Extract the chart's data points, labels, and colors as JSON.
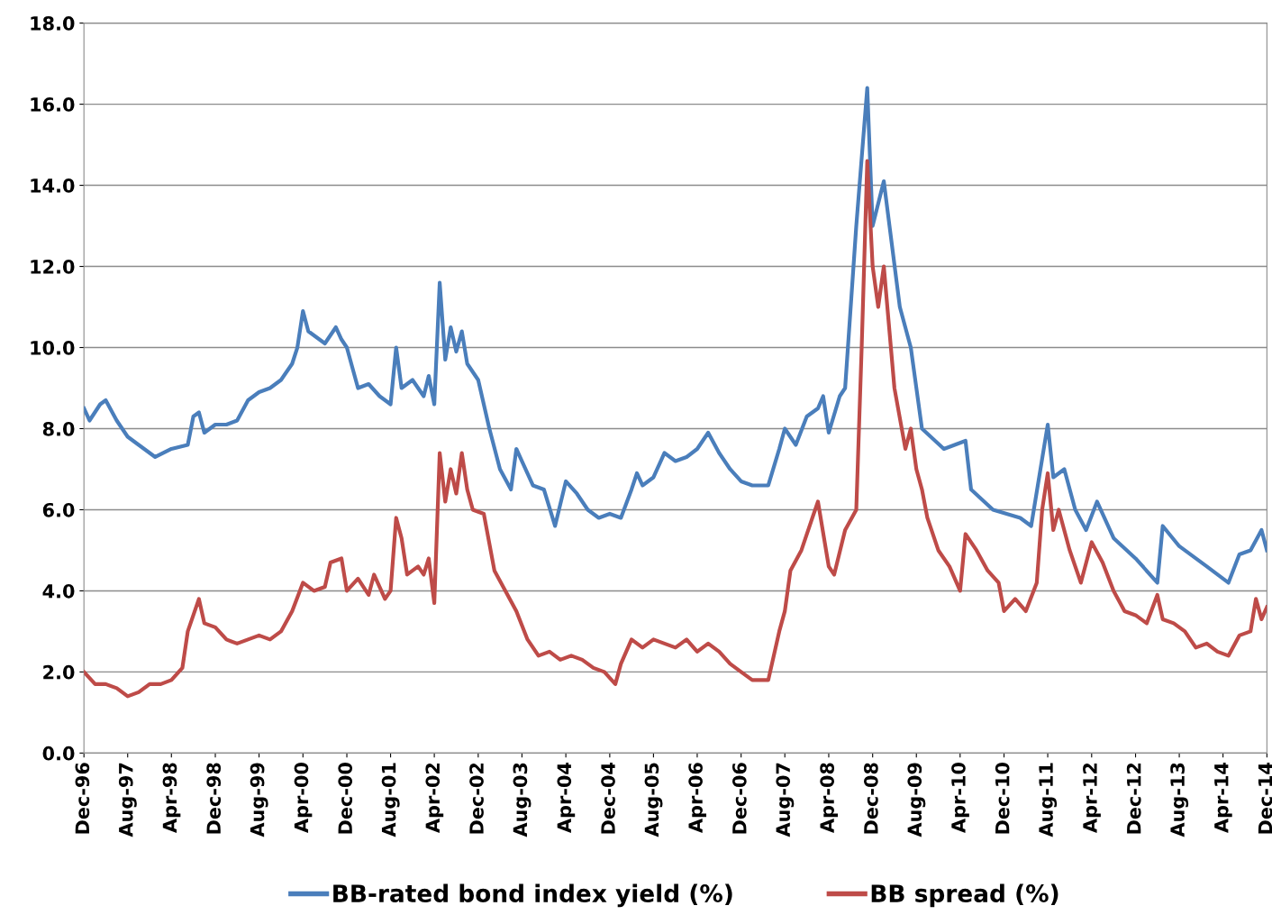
{
  "chart_data": {
    "type": "line",
    "xlim": [
      "1996-12",
      "2014-12"
    ],
    "ylim": [
      0,
      18
    ],
    "xticks": [
      {
        "value": "1996-12",
        "label": "Dec-96"
      },
      {
        "value": "1997-08",
        "label": "Aug-97"
      },
      {
        "value": "1998-04",
        "label": "Apr-98"
      },
      {
        "value": "1998-12",
        "label": "Dec-98"
      },
      {
        "value": "1999-08",
        "label": "Aug-99"
      },
      {
        "value": "2000-04",
        "label": "Apr-00"
      },
      {
        "value": "2000-12",
        "label": "Dec-00"
      },
      {
        "value": "2001-08",
        "label": "Aug-01"
      },
      {
        "value": "2002-04",
        "label": "Apr-02"
      },
      {
        "value": "2002-12",
        "label": "Dec-02"
      },
      {
        "value": "2003-08",
        "label": "Aug-03"
      },
      {
        "value": "2004-04",
        "label": "Apr-04"
      },
      {
        "value": "2004-12",
        "label": "Dec-04"
      },
      {
        "value": "2005-08",
        "label": "Aug-05"
      },
      {
        "value": "2006-04",
        "label": "Apr-06"
      },
      {
        "value": "2006-12",
        "label": "Dec-06"
      },
      {
        "value": "2007-08",
        "label": "Aug-07"
      },
      {
        "value": "2008-04",
        "label": "Apr-08"
      },
      {
        "value": "2008-12",
        "label": "Dec-08"
      },
      {
        "value": "2009-08",
        "label": "Aug-09"
      },
      {
        "value": "2010-04",
        "label": "Apr-10"
      },
      {
        "value": "2010-12",
        "label": "Dec-10"
      },
      {
        "value": "2011-08",
        "label": "Aug-11"
      },
      {
        "value": "2012-04",
        "label": "Apr-12"
      },
      {
        "value": "2012-12",
        "label": "Dec-12"
      },
      {
        "value": "2013-08",
        "label": "Aug-13"
      },
      {
        "value": "2014-04",
        "label": "Apr-14"
      },
      {
        "value": "2014-12",
        "label": "Dec-14"
      }
    ],
    "yticks": [
      {
        "value": 0,
        "label": "0.0"
      },
      {
        "value": 2,
        "label": "2.0"
      },
      {
        "value": 4,
        "label": "4.0"
      },
      {
        "value": 6,
        "label": "6.0"
      },
      {
        "value": 8,
        "label": "8.0"
      },
      {
        "value": 10,
        "label": "10.0"
      },
      {
        "value": 12,
        "label": "12.0"
      },
      {
        "value": 14,
        "label": "14.0"
      },
      {
        "value": 16,
        "label": "16.0"
      },
      {
        "value": 18,
        "label": "18.0"
      }
    ],
    "grid": "y",
    "legend": "bottom",
    "marker": "none",
    "line_style": "solid",
    "series": [
      {
        "name": "BB-rated bond index yield (%)",
        "color": "#4a7ebb",
        "x": [
          "1996-12",
          "1997-01",
          "1997-03",
          "1997-04",
          "1997-06",
          "1997-08",
          "1997-10",
          "1998-01",
          "1998-04",
          "1998-07",
          "1998-08",
          "1998-09",
          "1998-10",
          "1998-12",
          "1999-02",
          "1999-04",
          "1999-06",
          "1999-08",
          "1999-10",
          "1999-12",
          "2000-02",
          "2000-03",
          "2000-04",
          "2000-05",
          "2000-08",
          "2000-10",
          "2000-11",
          "2000-12",
          "2001-02",
          "2001-04",
          "2001-06",
          "2001-08",
          "2001-09",
          "2001-10",
          "2001-12",
          "2002-02",
          "2002-03",
          "2002-04",
          "2002-05",
          "2002-06",
          "2002-07",
          "2002-08",
          "2002-09",
          "2002-10",
          "2002-12",
          "2003-02",
          "2003-04",
          "2003-06",
          "2003-07",
          "2003-10",
          "2003-12",
          "2004-02",
          "2004-04",
          "2004-06",
          "2004-08",
          "2004-10",
          "2004-12",
          "2005-02",
          "2005-04",
          "2005-05",
          "2005-06",
          "2005-08",
          "2005-10",
          "2005-12",
          "2006-02",
          "2006-04",
          "2006-06",
          "2006-08",
          "2006-10",
          "2006-12",
          "2007-02",
          "2007-05",
          "2007-07",
          "2007-08",
          "2007-10",
          "2007-12",
          "2008-02",
          "2008-03",
          "2008-04",
          "2008-06",
          "2008-07",
          "2008-09",
          "2008-11",
          "2008-12",
          "2009-02",
          "2009-05",
          "2009-07",
          "2009-08",
          "2009-09",
          "2010-01",
          "2010-05",
          "2010-06",
          "2010-10",
          "2011-03",
          "2011-05",
          "2011-08",
          "2011-09",
          "2011-11",
          "2012-01",
          "2012-03",
          "2012-05",
          "2012-08",
          "2012-12",
          "2013-04",
          "2013-05",
          "2013-08",
          "2014-01",
          "2014-05",
          "2014-07",
          "2014-09",
          "2014-11",
          "2014-12"
        ],
        "values": [
          8.5,
          8.2,
          8.6,
          8.7,
          8.2,
          7.8,
          7.6,
          7.3,
          7.5,
          7.6,
          8.3,
          8.4,
          7.9,
          8.1,
          8.1,
          8.2,
          8.7,
          8.9,
          9.0,
          9.2,
          9.6,
          10.0,
          10.9,
          10.4,
          10.1,
          10.5,
          10.2,
          10.0,
          9.0,
          9.1,
          8.8,
          8.6,
          10.0,
          9.0,
          9.2,
          8.8,
          9.3,
          8.6,
          11.6,
          9.7,
          10.5,
          9.9,
          10.4,
          9.6,
          9.2,
          8.0,
          7.0,
          6.5,
          7.5,
          6.6,
          6.5,
          5.6,
          6.7,
          6.4,
          6.0,
          5.8,
          5.9,
          5.8,
          6.5,
          6.9,
          6.6,
          6.8,
          7.4,
          7.2,
          7.3,
          7.5,
          7.9,
          7.4,
          7.0,
          6.7,
          6.6,
          6.6,
          7.5,
          8.0,
          7.6,
          8.3,
          8.5,
          8.8,
          7.9,
          8.8,
          9.0,
          13.0,
          16.4,
          13.0,
          14.1,
          11.0,
          10.0,
          9.0,
          8.0,
          7.5,
          7.7,
          6.5,
          6.0,
          5.8,
          5.6,
          8.1,
          6.8,
          7.0,
          6.0,
          5.5,
          6.2,
          5.3,
          4.8,
          4.2,
          5.6,
          5.1,
          4.6,
          4.2,
          4.9,
          5.0,
          5.5,
          5.0
        ]
      },
      {
        "name": "BB spread (%)",
        "color": "#be4b48",
        "x": [
          "1996-12",
          "1997-02",
          "1997-04",
          "1997-06",
          "1997-08",
          "1997-10",
          "1997-12",
          "1998-02",
          "1998-04",
          "1998-06",
          "1998-07",
          "1998-09",
          "1998-10",
          "1998-12",
          "1999-02",
          "1999-04",
          "1999-06",
          "1999-08",
          "1999-10",
          "1999-12",
          "2000-02",
          "2000-04",
          "2000-06",
          "2000-08",
          "2000-09",
          "2000-11",
          "2000-12",
          "2001-02",
          "2001-04",
          "2001-05",
          "2001-07",
          "2001-08",
          "2001-09",
          "2001-10",
          "2001-11",
          "2002-01",
          "2002-02",
          "2002-03",
          "2002-04",
          "2002-05",
          "2002-06",
          "2002-07",
          "2002-08",
          "2002-09",
          "2002-10",
          "2002-11",
          "2003-01",
          "2003-03",
          "2003-05",
          "2003-07",
          "2003-09",
          "2003-11",
          "2004-01",
          "2004-03",
          "2004-05",
          "2004-07",
          "2004-09",
          "2004-11",
          "2005-01",
          "2005-02",
          "2005-04",
          "2005-06",
          "2005-08",
          "2005-10",
          "2005-12",
          "2006-02",
          "2006-04",
          "2006-06",
          "2006-08",
          "2006-10",
          "2006-12",
          "2007-02",
          "2007-05",
          "2007-07",
          "2007-08",
          "2007-09",
          "2007-11",
          "2008-01",
          "2008-02",
          "2008-04",
          "2008-05",
          "2008-07",
          "2008-09",
          "2008-10",
          "2008-11",
          "2008-12",
          "2009-01",
          "2009-02",
          "2009-04",
          "2009-06",
          "2009-07",
          "2009-08",
          "2009-09",
          "2009-10",
          "2009-12",
          "2010-02",
          "2010-04",
          "2010-05",
          "2010-07",
          "2010-09",
          "2010-11",
          "2010-12",
          "2011-02",
          "2011-04",
          "2011-06",
          "2011-07",
          "2011-08",
          "2011-09",
          "2011-10",
          "2011-12",
          "2012-02",
          "2012-04",
          "2012-06",
          "2012-08",
          "2012-10",
          "2012-12",
          "2013-02",
          "2013-04",
          "2013-05",
          "2013-07",
          "2013-09",
          "2013-11",
          "2014-01",
          "2014-03",
          "2014-05",
          "2014-07",
          "2014-09",
          "2014-10",
          "2014-11",
          "2014-12"
        ],
        "values": [
          2.0,
          1.7,
          1.7,
          1.6,
          1.4,
          1.5,
          1.7,
          1.7,
          1.8,
          2.1,
          3.0,
          3.8,
          3.2,
          3.1,
          2.8,
          2.7,
          2.8,
          2.9,
          2.8,
          3.0,
          3.5,
          4.2,
          4.0,
          4.1,
          4.7,
          4.8,
          4.0,
          4.3,
          3.9,
          4.4,
          3.8,
          4.0,
          5.8,
          5.3,
          4.4,
          4.6,
          4.4,
          4.8,
          3.7,
          7.4,
          6.2,
          7.0,
          6.4,
          7.4,
          6.5,
          6.0,
          5.9,
          4.5,
          4.0,
          3.5,
          2.8,
          2.4,
          2.5,
          2.3,
          2.4,
          2.3,
          2.1,
          2.0,
          1.7,
          2.2,
          2.8,
          2.6,
          2.8,
          2.7,
          2.6,
          2.8,
          2.5,
          2.7,
          2.5,
          2.2,
          2.0,
          1.8,
          1.8,
          3.0,
          3.5,
          4.5,
          5.0,
          5.8,
          6.2,
          4.6,
          4.4,
          5.5,
          6.0,
          10.0,
          14.6,
          12.0,
          11.0,
          12.0,
          9.0,
          7.5,
          8.0,
          7.0,
          6.5,
          5.8,
          5.0,
          4.6,
          4.0,
          5.4,
          5.0,
          4.5,
          4.2,
          3.5,
          3.8,
          3.5,
          4.2,
          6.0,
          6.9,
          5.5,
          6.0,
          5.0,
          4.2,
          5.2,
          4.7,
          4.0,
          3.5,
          3.4,
          3.2,
          3.9,
          3.3,
          3.2,
          3.0,
          2.6,
          2.7,
          2.5,
          2.4,
          2.9,
          3.0,
          3.8,
          3.3,
          3.6
        ]
      }
    ]
  }
}
